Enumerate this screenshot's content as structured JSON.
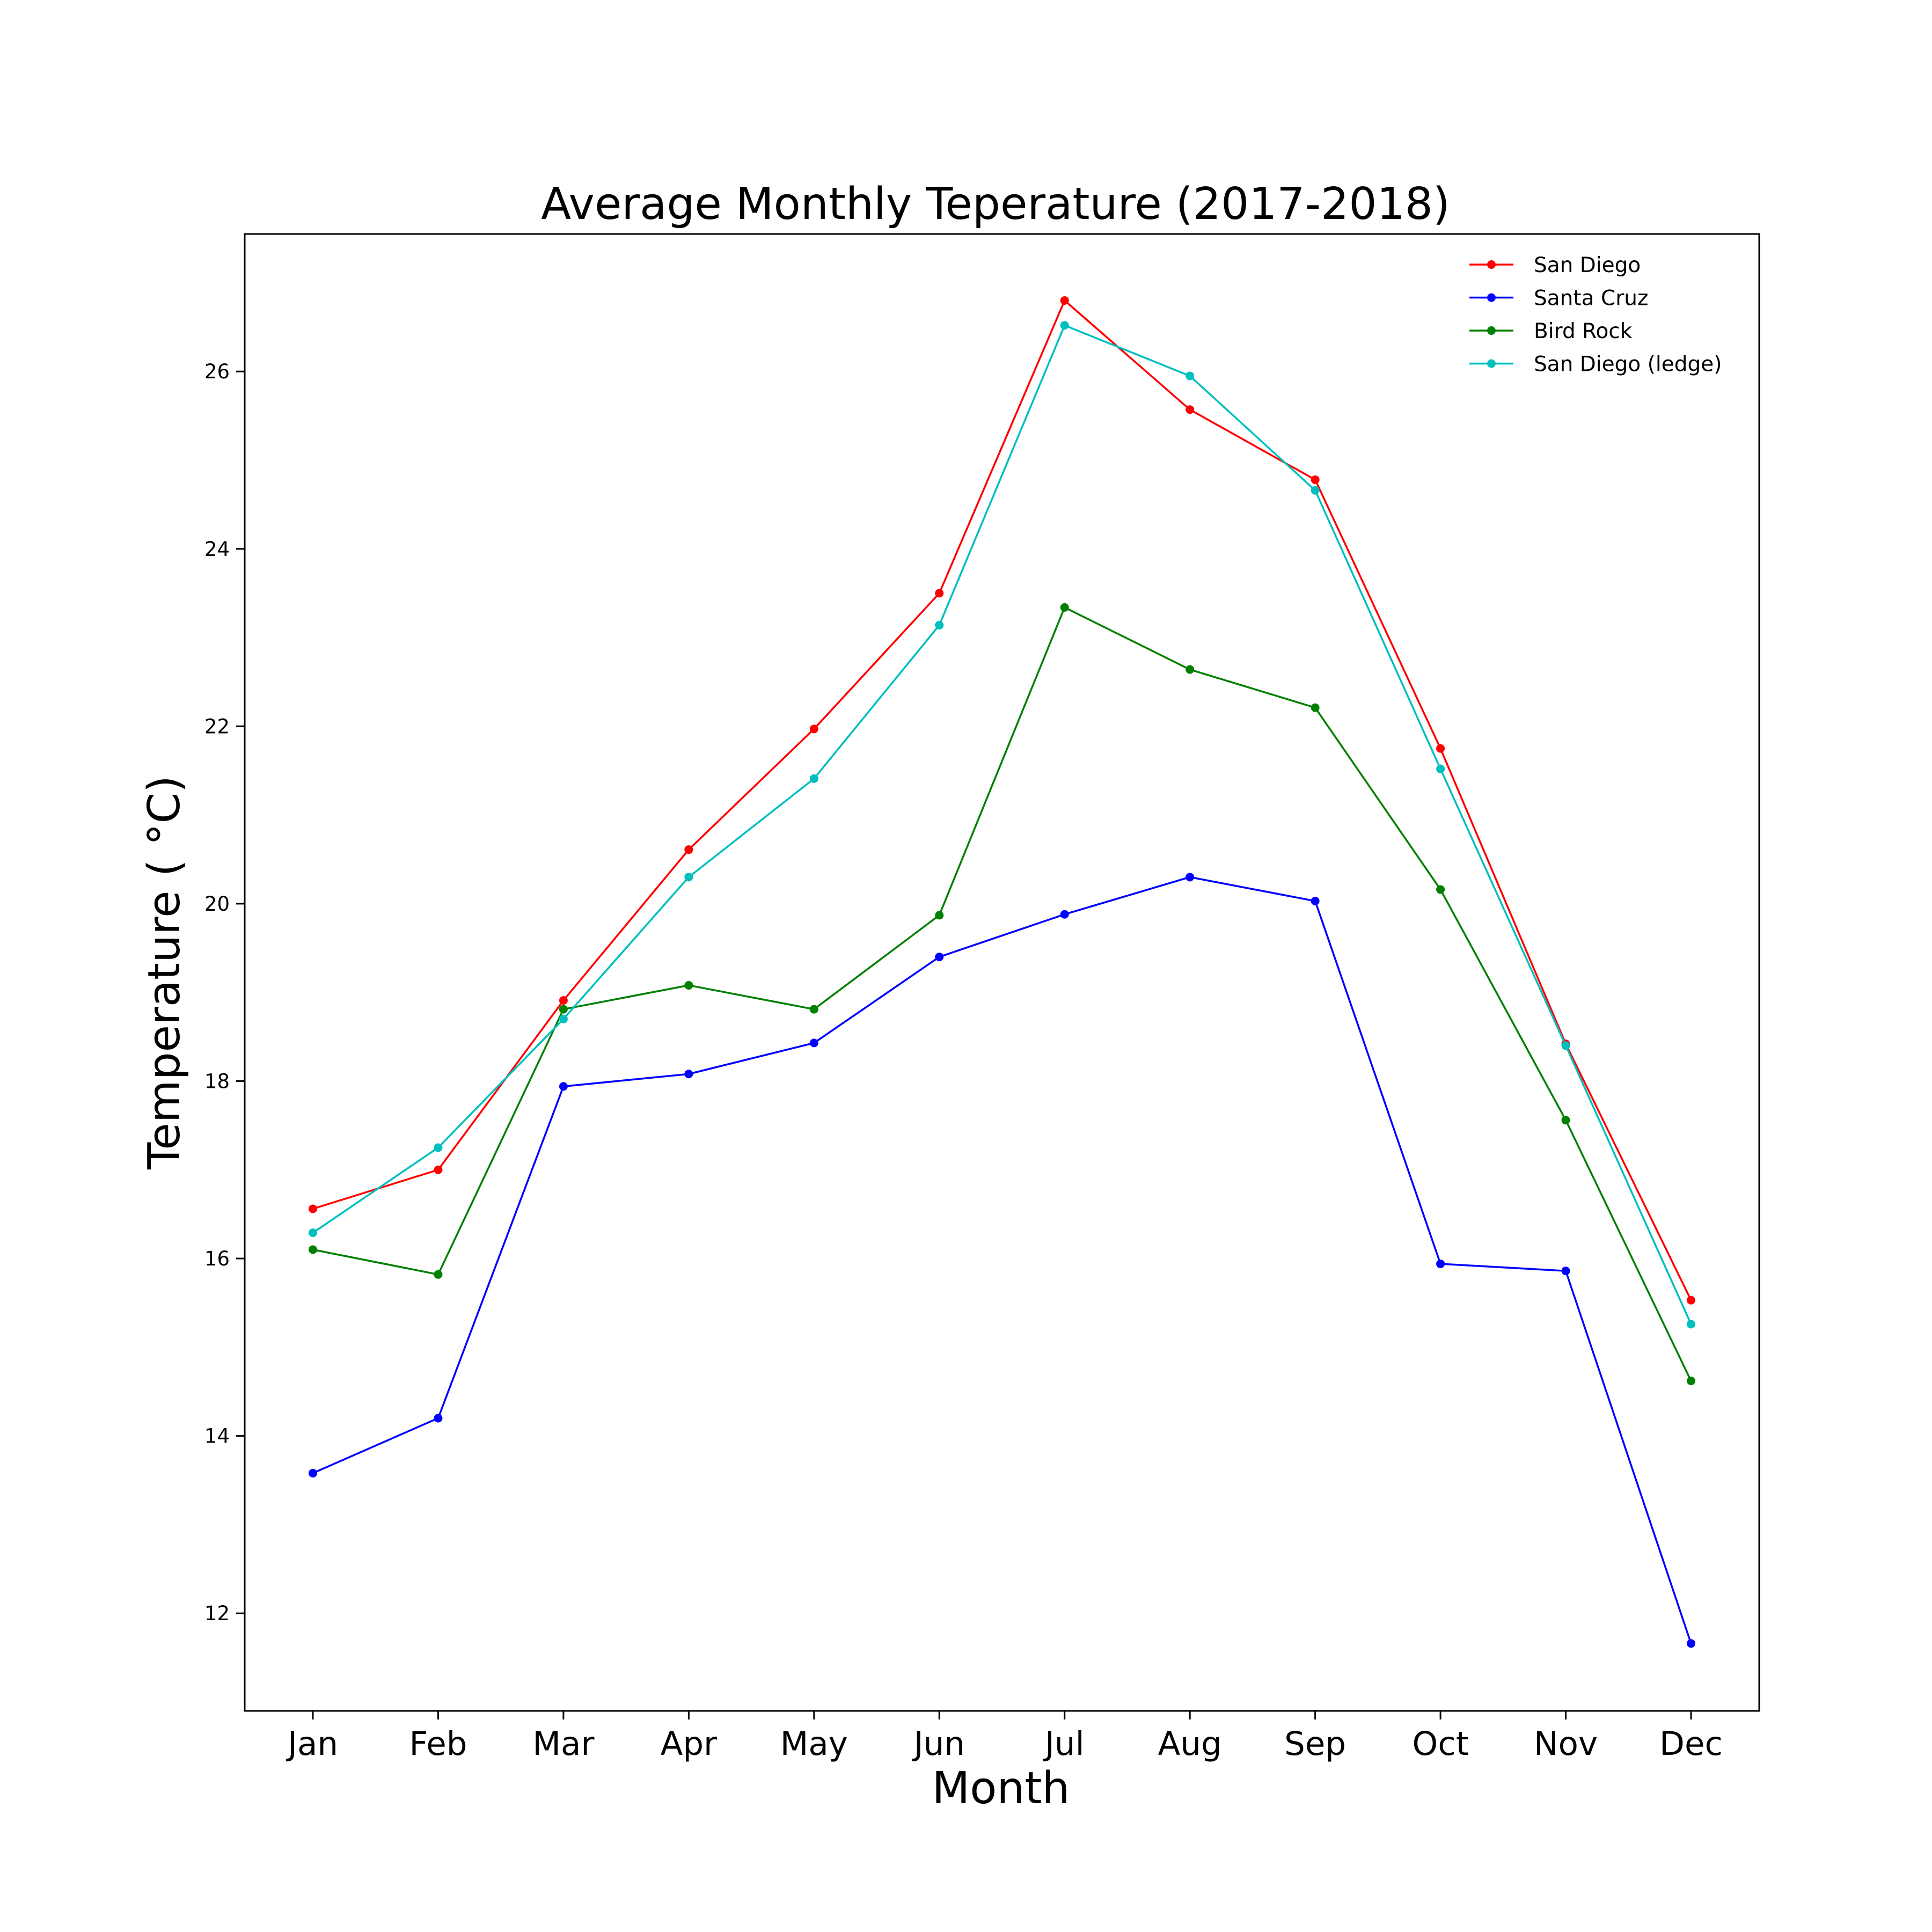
{
  "chart_data": {
    "type": "line",
    "title": "Average Monthly Teperature (2017-2018)",
    "xlabel": "Month",
    "ylabel": "Temperature ($^\\circ$C)",
    "ylabel_text": "Temperature ( °C)",
    "categories": [
      "Jan",
      "Feb",
      "Mar",
      "Apr",
      "May",
      "Jun",
      "Jul",
      "Aug",
      "Sep",
      "Oct",
      "Nov",
      "Dec"
    ],
    "ylim": [
      10.9,
      27.55
    ],
    "yticks": [
      12,
      14,
      16,
      18,
      20,
      22,
      24,
      26
    ],
    "grid": false,
    "legend_position": "top-right",
    "series": [
      {
        "name": "San Diego",
        "color": "#ff0000",
        "values": [
          16.56,
          17.0,
          18.91,
          20.61,
          21.97,
          23.5,
          26.8,
          25.57,
          24.78,
          21.75,
          18.42,
          15.53
        ]
      },
      {
        "name": "Santa Cruz",
        "color": "#0000ff",
        "values": [
          13.58,
          14.2,
          17.94,
          18.08,
          18.43,
          19.4,
          19.88,
          20.3,
          20.03,
          15.94,
          15.86,
          11.66
        ]
      },
      {
        "name": "Bird Rock",
        "color": "#008000",
        "values": [
          16.1,
          15.82,
          18.81,
          19.08,
          18.81,
          19.87,
          23.34,
          22.64,
          22.21,
          20.16,
          17.56,
          14.62
        ]
      },
      {
        "name": "San Diego (ledge)",
        "color": "#00bfbf",
        "values": [
          16.29,
          17.25,
          18.7,
          20.3,
          21.41,
          23.14,
          26.52,
          25.95,
          24.66,
          21.52,
          18.4,
          15.26
        ]
      }
    ]
  }
}
